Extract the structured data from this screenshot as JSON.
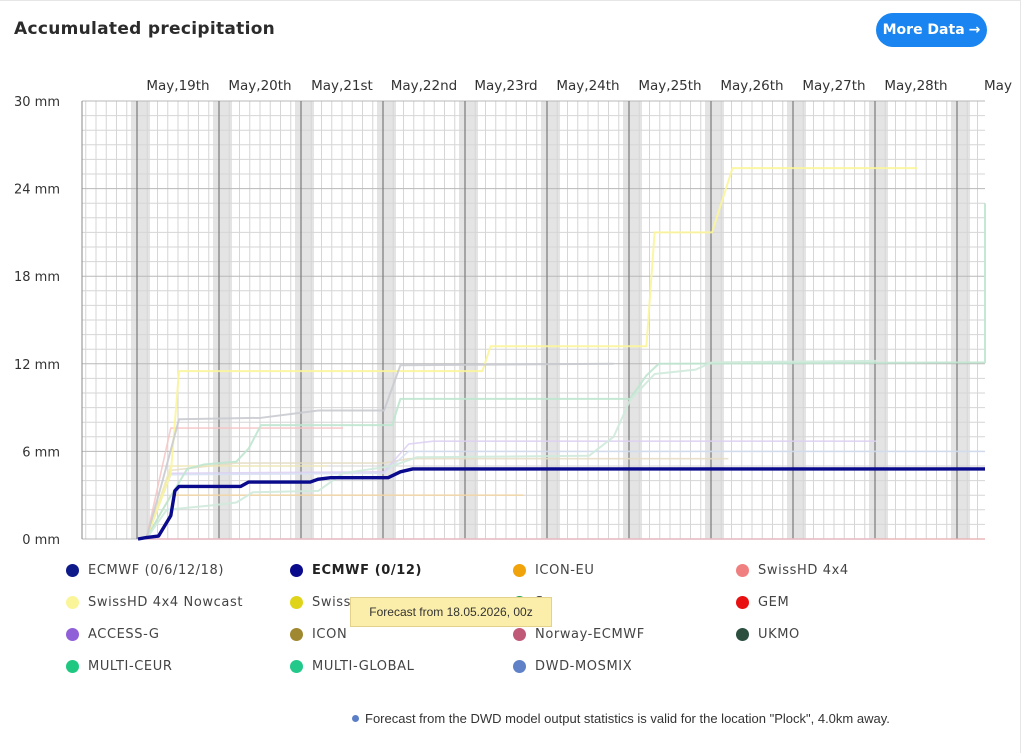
{
  "header": {
    "title": "Accumulated precipitation",
    "more_button": "More Data",
    "more_arrow": "→"
  },
  "tooltip": "Forecast from 18.05.2026, 00z",
  "footnote": "Forecast from the DWD model output statistics is valid for the location \"Plock\", 4.0km away.",
  "legend": [
    {
      "label": "ECMWF (0/6/12/18)",
      "color": "#0f1a8a"
    },
    {
      "label": "ECMWF (0/12)",
      "color": "#0a0a8c",
      "bold": true
    },
    {
      "label": "ICON-EU",
      "color": "#f0a30a"
    },
    {
      "label": "SwissHD 4x4",
      "color": "#f08080"
    },
    {
      "label": "SwissHD 4x4 Nowcast",
      "color": "#fbf59a"
    },
    {
      "label": "Swiss",
      "color": "#e0d41a"
    },
    {
      "label": "S",
      "color": "#27a050"
    },
    {
      "label": "GEM",
      "color": "#e81010"
    },
    {
      "label": "ACCESS-G",
      "color": "#9060d8"
    },
    {
      "label": "ICON",
      "color": "#a08830"
    },
    {
      "label": "Norway-ECMWF",
      "color": "#c05878"
    },
    {
      "label": "UKMO",
      "color": "#2c5040"
    },
    {
      "label": "MULTI-CEUR",
      "color": "#1fc880"
    },
    {
      "label": "MULTI-GLOBAL",
      "color": "#22c98a"
    },
    {
      "label": "DWD-MOSMIX",
      "color": "#6080c8"
    }
  ],
  "chart_data": {
    "type": "line",
    "title": "Accumulated precipitation",
    "xlabel": "",
    "ylabel": "",
    "x_unit": "days since forecast start",
    "xlim": [
      0,
      11.0
    ],
    "ylim": [
      0,
      30
    ],
    "y_ticks": [
      "0 mm",
      "6 mm",
      "12 mm",
      "18 mm",
      "24 mm",
      "30 mm"
    ],
    "x_tick_labels": [
      "May,19th",
      "May,20th",
      "May,21st",
      "May,22nd",
      "May,23rd",
      "May,24th",
      "May,25th",
      "May,26th",
      "May,27th",
      "May,28th",
      "May"
    ],
    "grid": true,
    "series": [
      {
        "name": "ECMWF (0/12)",
        "color": "#0a0a8c",
        "width": 3.4,
        "opacity": 1,
        "points": [
          [
            0.0,
            0
          ],
          [
            0.1,
            0.1
          ],
          [
            0.25,
            0.2
          ],
          [
            0.4,
            1.6
          ],
          [
            0.45,
            3.3
          ],
          [
            0.5,
            3.6
          ],
          [
            1.25,
            3.6
          ],
          [
            1.35,
            3.9
          ],
          [
            2.1,
            3.9
          ],
          [
            2.2,
            4.1
          ],
          [
            2.35,
            4.2
          ],
          [
            3.05,
            4.2
          ],
          [
            3.2,
            4.6
          ],
          [
            3.35,
            4.8
          ],
          [
            11.0,
            4.8
          ]
        ]
      },
      {
        "name": "SwissHD 4x4 Nowcast",
        "color": "#fbf59a",
        "width": 2,
        "opacity": 0.9,
        "points": [
          [
            0.1,
            0
          ],
          [
            0.4,
            4.5
          ],
          [
            0.5,
            11.5
          ],
          [
            4.2,
            11.5
          ],
          [
            4.3,
            13.2
          ],
          [
            6.2,
            13.2
          ],
          [
            6.3,
            21.0
          ],
          [
            7.0,
            21.0
          ],
          [
            7.25,
            25.4
          ],
          [
            9.5,
            25.4
          ]
        ]
      },
      {
        "name": "MULTI-CEUR",
        "color": "#bfe6cf",
        "width": 2,
        "opacity": 0.9,
        "points": [
          [
            0.1,
            0
          ],
          [
            0.3,
            2.0
          ],
          [
            0.6,
            4.8
          ],
          [
            0.8,
            5.1
          ],
          [
            1.2,
            5.3
          ],
          [
            1.35,
            6.2
          ],
          [
            1.5,
            7.8
          ],
          [
            3.1,
            7.8
          ],
          [
            3.2,
            9.6
          ],
          [
            6.0,
            9.6
          ],
          [
            6.2,
            11.2
          ],
          [
            6.35,
            12.0
          ],
          [
            10.7,
            12.1
          ],
          [
            10.9,
            22.2
          ],
          [
            11.0,
            23.0
          ]
        ]
      },
      {
        "name": "MULTI-GLOBAL",
        "color": "#cfeadb",
        "width": 2,
        "opacity": 0.9,
        "points": [
          [
            0.1,
            0
          ],
          [
            0.35,
            2.0
          ],
          [
            0.9,
            2.3
          ],
          [
            1.2,
            2.5
          ],
          [
            1.4,
            3.2
          ],
          [
            2.2,
            3.3
          ],
          [
            2.5,
            4.5
          ],
          [
            3.1,
            5.0
          ],
          [
            3.4,
            5.6
          ],
          [
            5.5,
            5.7
          ],
          [
            5.8,
            7.0
          ],
          [
            6.0,
            9.5
          ],
          [
            6.3,
            11.3
          ],
          [
            6.8,
            11.6
          ],
          [
            7.0,
            12.1
          ],
          [
            9.0,
            12.2
          ]
        ]
      },
      {
        "name": "ECMWF (0/6/12/18)",
        "color": "#c9cbd0",
        "width": 2,
        "opacity": 0.9,
        "points": [
          [
            0.1,
            0
          ],
          [
            0.3,
            4.0
          ],
          [
            0.5,
            8.2
          ],
          [
            1.5,
            8.3
          ],
          [
            2.2,
            8.8
          ],
          [
            3.0,
            8.8
          ],
          [
            3.2,
            11.9
          ],
          [
            5.8,
            12.0
          ]
        ]
      },
      {
        "name": "SwissHD 4x4",
        "color": "#f6c4c4",
        "width": 1.6,
        "opacity": 0.85,
        "points": [
          [
            0.1,
            0
          ],
          [
            0.4,
            7.6
          ],
          [
            2.5,
            7.6
          ]
        ]
      },
      {
        "name": "ICON-EU",
        "color": "#f3d6a4",
        "width": 1.6,
        "opacity": 0.85,
        "points": [
          [
            0.1,
            0
          ],
          [
            0.4,
            3.0
          ],
          [
            4.7,
            3.0
          ]
        ]
      },
      {
        "name": "ICON",
        "color": "#e5dcc2",
        "width": 1.6,
        "opacity": 0.85,
        "points": [
          [
            0.1,
            0
          ],
          [
            0.4,
            4.7
          ],
          [
            1.2,
            5.2
          ],
          [
            3.0,
            5.2
          ],
          [
            3.3,
            5.5
          ],
          [
            7.2,
            5.5
          ]
        ]
      },
      {
        "name": "ACCESS-G",
        "color": "#dccff2",
        "width": 1.6,
        "opacity": 0.85,
        "points": [
          [
            0.1,
            0
          ],
          [
            0.4,
            4.5
          ],
          [
            3.0,
            4.6
          ],
          [
            3.3,
            6.5
          ],
          [
            3.6,
            6.7
          ],
          [
            9.0,
            6.7
          ]
        ]
      },
      {
        "name": "DWD-MOSMIX",
        "color": "#d5dff3",
        "width": 1.6,
        "opacity": 0.85,
        "points": [
          [
            0.1,
            0
          ],
          [
            0.4,
            4.4
          ],
          [
            3.0,
            4.5
          ],
          [
            3.3,
            6.0
          ],
          [
            11.0,
            6.0
          ]
        ]
      },
      {
        "name": "Swiss",
        "color": "#efe9b0",
        "width": 1.6,
        "opacity": 0.8,
        "points": [
          [
            0.1,
            0
          ],
          [
            0.4,
            5.0
          ],
          [
            2.3,
            5.0
          ]
        ]
      },
      {
        "name": "GEM",
        "color": "#f2b3b3",
        "width": 1.6,
        "opacity": 0.8,
        "points": [
          [
            0.1,
            0
          ],
          [
            11.0,
            0
          ]
        ]
      },
      {
        "name": "Norway-ECMWF",
        "color": "#e6c0cc",
        "width": 1.6,
        "opacity": 0.8,
        "points": [
          [
            0.1,
            0
          ],
          [
            9.0,
            0
          ]
        ]
      }
    ]
  }
}
